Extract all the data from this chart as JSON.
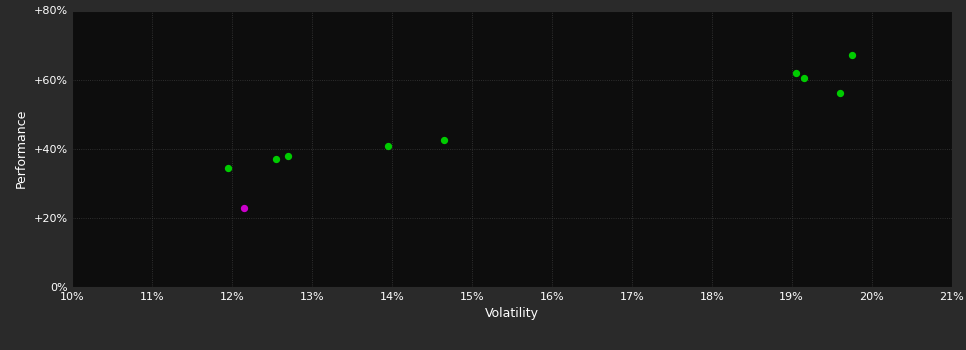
{
  "background_color": "#2a2a2a",
  "plot_bg_color": "#0d0d0d",
  "grid_color": "#3a3a3a",
  "text_color": "#ffffff",
  "xlabel": "Volatility",
  "ylabel": "Performance",
  "xlim": [
    0.1,
    0.21
  ],
  "ylim": [
    0.0,
    0.8
  ],
  "xticks": [
    0.1,
    0.11,
    0.12,
    0.13,
    0.14,
    0.15,
    0.16,
    0.17,
    0.18,
    0.19,
    0.2,
    0.21
  ],
  "yticks": [
    0.0,
    0.2,
    0.4,
    0.6,
    0.8
  ],
  "ytick_labels": [
    "0%",
    "+20%",
    "+40%",
    "+60%",
    "+80%"
  ],
  "green_points": [
    [
      0.1195,
      0.345
    ],
    [
      0.1255,
      0.37
    ],
    [
      0.127,
      0.38
    ],
    [
      0.1395,
      0.408
    ],
    [
      0.1465,
      0.425
    ],
    [
      0.1905,
      0.62
    ],
    [
      0.1915,
      0.605
    ],
    [
      0.196,
      0.56
    ],
    [
      0.1975,
      0.67
    ]
  ],
  "magenta_points": [
    [
      0.1215,
      0.228
    ]
  ],
  "point_size": 18,
  "green_color": "#00cc00",
  "magenta_color": "#cc00cc",
  "font_size_ticks": 8,
  "font_size_label": 9
}
